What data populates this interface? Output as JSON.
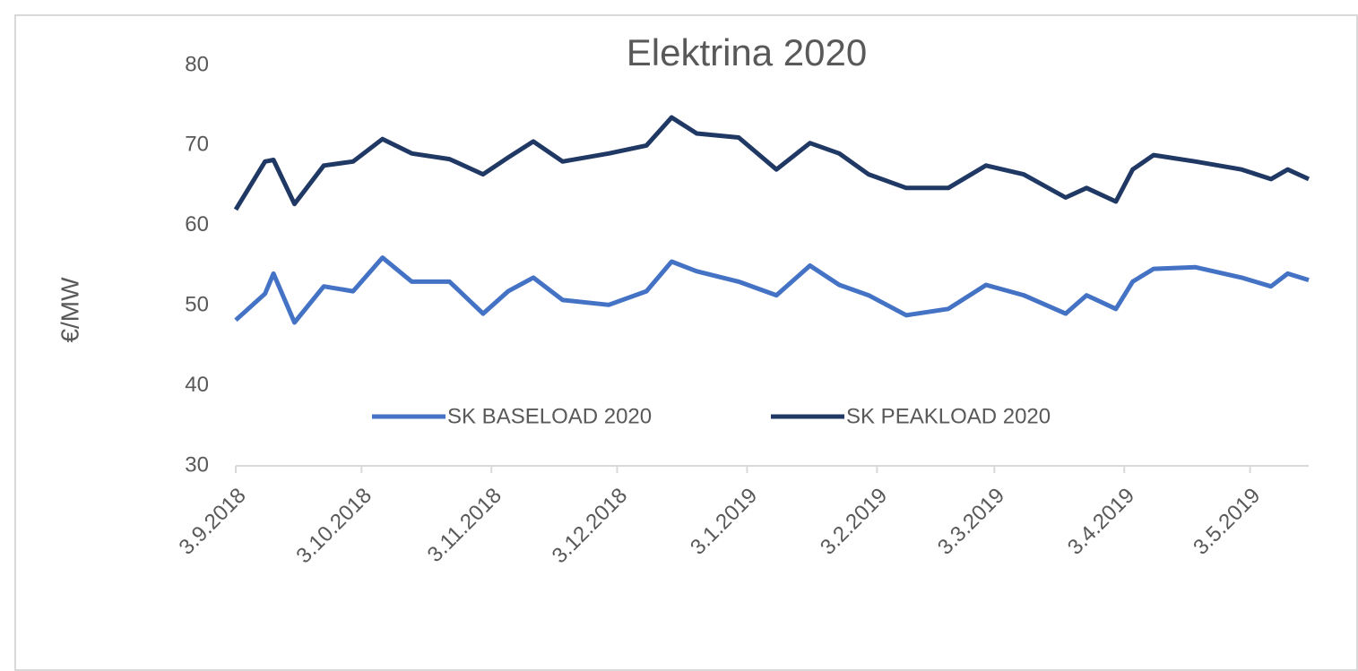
{
  "chart_data": {
    "type": "line",
    "title": "Elektrina 2020",
    "y_label": "€/MW",
    "x": [
      "2018-09-03",
      "2018-09-10",
      "2018-09-12",
      "2018-09-17",
      "2018-09-24",
      "2018-10-01",
      "2018-10-08",
      "2018-10-15",
      "2018-10-24",
      "2018-11-01",
      "2018-11-07",
      "2018-11-13",
      "2018-11-20",
      "2018-12-01",
      "2018-12-10",
      "2018-12-16",
      "2018-12-22",
      "2019-01-01",
      "2019-01-10",
      "2019-01-18",
      "2019-01-25",
      "2019-02-01",
      "2019-02-10",
      "2019-02-20",
      "2019-03-01",
      "2019-03-10",
      "2019-03-20",
      "2019-03-25",
      "2019-04-01",
      "2019-04-05",
      "2019-04-10",
      "2019-04-20",
      "2019-05-01",
      "2019-05-08",
      "2019-05-12",
      "2019-05-17"
    ],
    "series": [
      {
        "name": "SK BASELOAD 2020",
        "color": "#4472c4",
        "values": [
          48.2,
          51.5,
          54,
          47.9,
          52.4,
          51.8,
          56,
          53,
          53,
          49,
          51.8,
          53.5,
          50.7,
          50.1,
          51.8,
          55.5,
          54.3,
          53,
          51.3,
          55,
          52.6,
          51.3,
          48.8,
          49.6,
          52.6,
          51.3,
          49,
          51.3,
          49.6,
          53,
          54.6,
          54.8,
          53.5,
          52.4,
          54,
          53.2
        ]
      },
      {
        "name": "SK PEAKLOAD 2020",
        "color": "#1f3864",
        "values": [
          62,
          68,
          68.2,
          62.7,
          67.5,
          68,
          70.8,
          69,
          68.3,
          66.4,
          68.5,
          70.5,
          68,
          69,
          70,
          73.5,
          71.5,
          71,
          67,
          70.3,
          69,
          66.4,
          64.7,
          64.7,
          67.5,
          66.4,
          63.5,
          64.7,
          63,
          67,
          68.8,
          68,
          67,
          65.8,
          67,
          65.8
        ]
      }
    ],
    "xlim": [
      "2018-09-03",
      "2019-05-17"
    ],
    "xticks": [
      {
        "value": "2018-09-03",
        "label": "3.9.2018"
      },
      {
        "value": "2018-10-03",
        "label": "3.10.2018"
      },
      {
        "value": "2018-11-03",
        "label": "3.11.2018"
      },
      {
        "value": "2018-12-03",
        "label": "3.12.2018"
      },
      {
        "value": "2019-01-03",
        "label": "3.1.2019"
      },
      {
        "value": "2019-02-03",
        "label": "3.2.2019"
      },
      {
        "value": "2019-03-03",
        "label": "3.3.2019"
      },
      {
        "value": "2019-04-03",
        "label": "3.4.2019"
      },
      {
        "value": "2019-05-03",
        "label": "3.5.2019"
      }
    ],
    "ylim": [
      30,
      80
    ],
    "yticks": [
      30,
      40,
      50,
      60,
      70,
      80
    ],
    "grid": false,
    "legend": "bottom"
  }
}
